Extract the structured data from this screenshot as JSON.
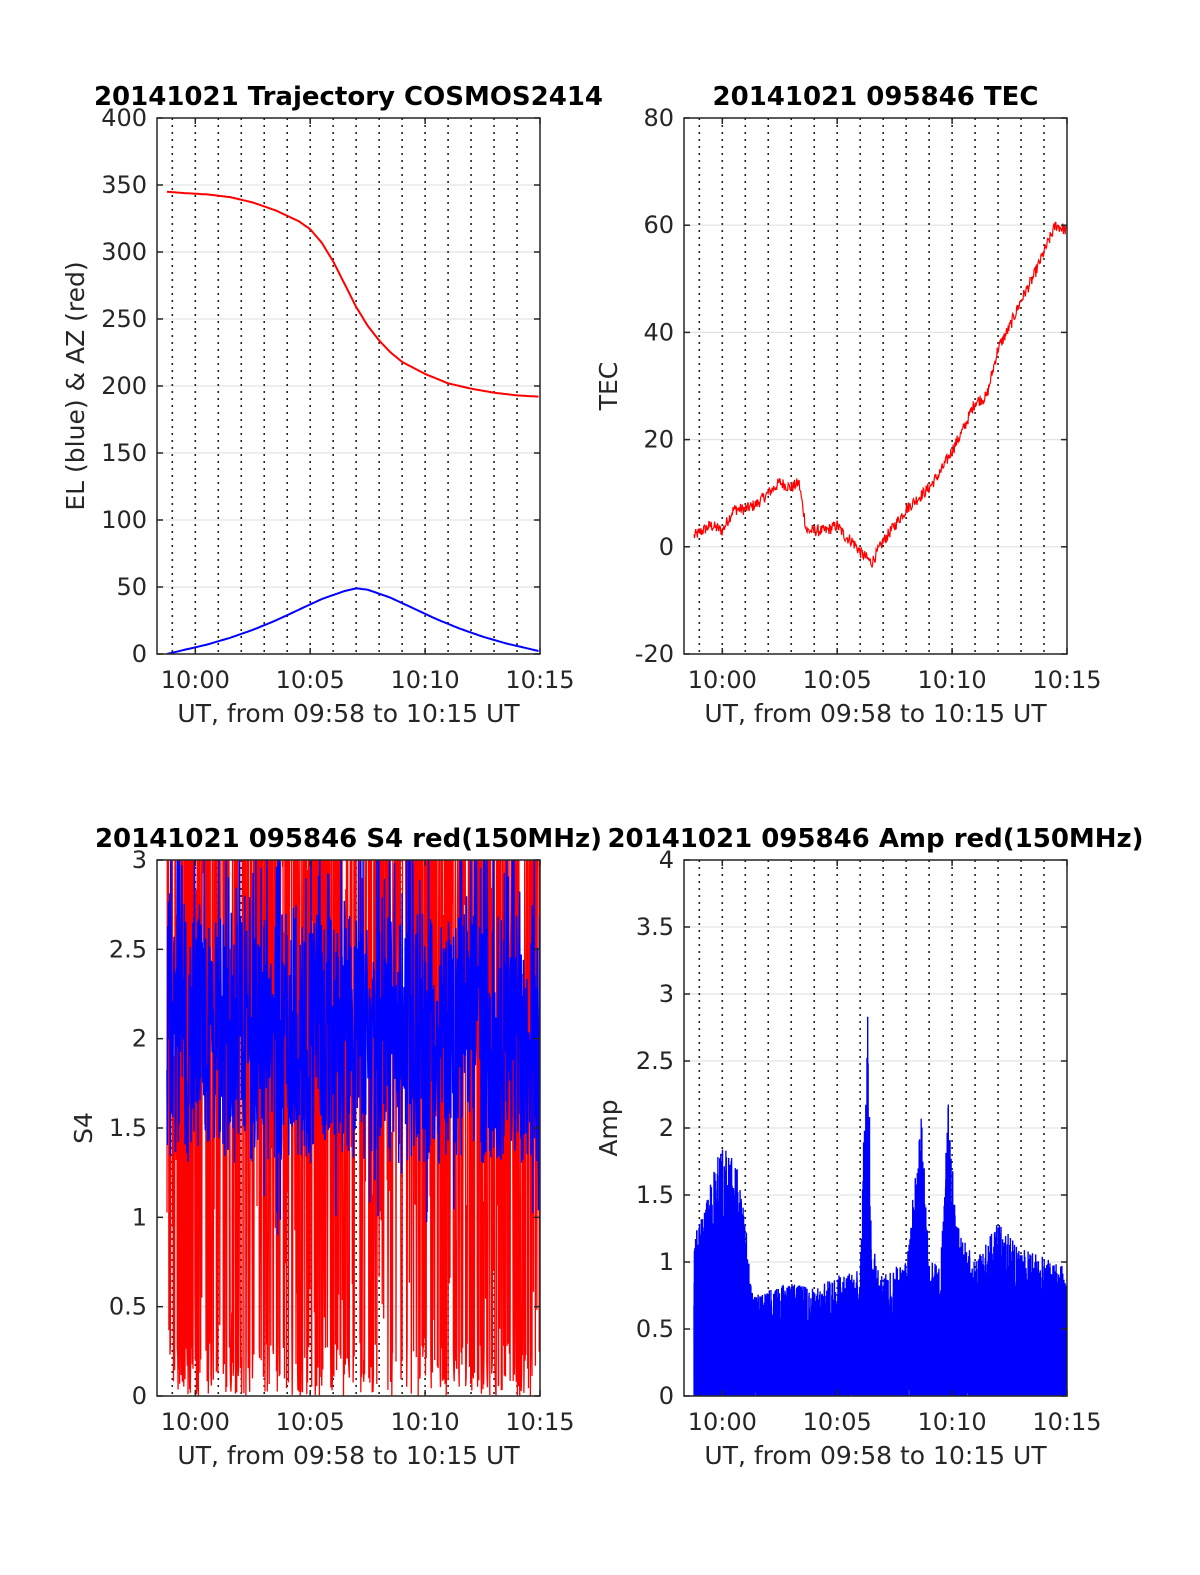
{
  "chart_data": [
    {
      "type": "line",
      "title": "20141021 Trajectory COSMOS2414",
      "xlabel": "UT, from 09:58 to 10:15 UT",
      "ylabel": "EL (blue) & AZ (red)",
      "xlim": [
        "09:58:20",
        "10:15:00"
      ],
      "ylim": [
        0,
        400
      ],
      "yticks": [
        0,
        50,
        100,
        150,
        200,
        250,
        300,
        350,
        400
      ],
      "xticks": [
        "10:00",
        "10:05",
        "10:10",
        "10:15"
      ],
      "grid": {
        "x": "dotted",
        "y": "solid-light"
      },
      "series": [
        {
          "color": "#ff0000",
          "x": [
            "09:58:46",
            "09:59:30",
            "10:00:30",
            "10:01:30",
            "10:02:30",
            "10:03:30",
            "10:04:30",
            "10:05:00",
            "10:05:30",
            "10:06:00",
            "10:06:30",
            "10:07:00",
            "10:07:30",
            "10:08:00",
            "10:08:30",
            "10:09:00",
            "10:10:00",
            "10:11:00",
            "10:12:00",
            "10:13:00",
            "10:14:00",
            "10:15:00"
          ],
          "values": [
            345,
            344,
            343,
            341,
            337,
            331,
            323,
            317,
            307,
            293,
            276,
            259,
            245,
            234,
            225,
            218,
            209,
            202,
            198,
            195,
            193,
            192
          ]
        },
        {
          "color": "#0000ff",
          "x": [
            "09:58:46",
            "09:59:30",
            "10:00:30",
            "10:01:30",
            "10:02:30",
            "10:03:30",
            "10:04:30",
            "10:05:30",
            "10:06:30",
            "10:07:00",
            "10:07:30",
            "10:08:30",
            "10:09:30",
            "10:10:30",
            "10:11:30",
            "10:12:30",
            "10:13:30",
            "10:14:30",
            "10:15:00"
          ],
          "values": [
            0,
            3,
            7,
            12,
            18,
            25,
            33,
            41,
            47,
            49,
            48,
            42,
            34,
            26,
            19,
            13,
            8,
            4,
            2
          ]
        }
      ]
    },
    {
      "type": "line",
      "title": "20141021 095846 TEC",
      "xlabel": "UT, from 09:58 to 10:15 UT",
      "ylabel": "TEC",
      "xlim": [
        "09:58:20",
        "10:15:00"
      ],
      "ylim": [
        -20,
        80
      ],
      "yticks": [
        -20,
        0,
        20,
        40,
        60,
        80
      ],
      "xticks": [
        "10:00",
        "10:05",
        "10:10",
        "10:15"
      ],
      "grid": {
        "x": "dotted",
        "y": "solid-light"
      },
      "series": [
        {
          "color": "#ff0000",
          "x": [
            "09:58:46",
            "09:59:30",
            "10:00:00",
            "10:00:30",
            "10:01:00",
            "10:01:30",
            "10:02:00",
            "10:02:30",
            "10:03:00",
            "10:03:20",
            "10:03:40",
            "10:04:00",
            "10:04:30",
            "10:05:00",
            "10:05:20",
            "10:05:40",
            "10:06:00",
            "10:06:30",
            "10:07:00",
            "10:07:30",
            "10:08:00",
            "10:08:30",
            "10:09:00",
            "10:09:30",
            "10:10:00",
            "10:10:30",
            "10:11:00",
            "10:11:30",
            "10:12:00",
            "10:12:30",
            "10:13:00",
            "10:13:30",
            "10:14:00",
            "10:14:30",
            "10:15:00"
          ],
          "values": [
            2,
            4,
            3,
            7,
            7,
            8,
            10,
            12,
            11,
            12,
            3,
            3,
            3,
            4,
            2,
            1,
            -1,
            -3,
            1,
            4,
            7,
            9,
            11,
            14,
            18,
            22,
            27,
            28,
            37,
            41,
            46,
            50,
            55,
            60,
            59
          ]
        }
      ]
    },
    {
      "type": "line",
      "title": "20141021 095846 S4 red(150MHz)",
      "xlabel": "UT, from 09:58 to 10:15 UT",
      "ylabel": "S4",
      "xlim": [
        "09:58:20",
        "10:15:00"
      ],
      "ylim": [
        0,
        3
      ],
      "yticks": [
        0,
        0.5,
        1,
        1.5,
        2,
        2.5,
        3
      ],
      "xticks": [
        "10:00",
        "10:05",
        "10:10",
        "10:15"
      ],
      "grid": {
        "x": "dotted",
        "y": "solid-light"
      },
      "series": [
        {
          "color": "#ff0000",
          "x_range": [
            "09:58:46",
            "10:15:00"
          ],
          "values_range": [
            0,
            3
          ]
        },
        {
          "color": "#0000ff",
          "x_range": [
            "09:58:46",
            "10:15:00"
          ],
          "values_range": [
            0.9,
            3
          ],
          "typical": 2.0
        }
      ]
    },
    {
      "type": "line",
      "title": "20141021 095846 Amp red(150MHz)",
      "xlabel": "UT, from 09:58 to 10:15 UT",
      "ylabel": "Amp",
      "xlim": [
        "09:58:20",
        "10:15:00"
      ],
      "ylim": [
        0,
        4
      ],
      "yticks": [
        0,
        0.5,
        1,
        1.5,
        2,
        2.5,
        3,
        3.5,
        4
      ],
      "xticks": [
        "10:00",
        "10:05",
        "10:10",
        "10:15"
      ],
      "grid": {
        "x": "dotted",
        "y": "solid-light"
      },
      "series": [
        {
          "color": "#0000ff",
          "envelope_x": [
            "09:58:46",
            "09:59:00",
            "09:59:30",
            "10:00:00",
            "10:00:20",
            "10:00:40",
            "10:01:00",
            "10:01:20",
            "10:02:00",
            "10:03:00",
            "10:04:00",
            "10:05:00",
            "10:06:00",
            "10:06:20",
            "10:06:30",
            "10:06:40",
            "10:07:00",
            "10:08:00",
            "10:08:40",
            "10:09:00",
            "10:09:30",
            "10:09:50",
            "10:10:10",
            "10:11:00",
            "10:12:00",
            "10:13:00",
            "10:14:00",
            "10:15:00"
          ],
          "envelope_values": [
            1.2,
            1.3,
            1.6,
            1.9,
            1.8,
            1.7,
            1.3,
            0.75,
            0.8,
            0.85,
            0.8,
            0.9,
            0.95,
            3.1,
            1.0,
            1.1,
            0.9,
            1.05,
            2.1,
            1.0,
            1.0,
            2.2,
            1.3,
            1.0,
            1.3,
            1.1,
            1.05,
            0.95
          ]
        }
      ]
    }
  ]
}
